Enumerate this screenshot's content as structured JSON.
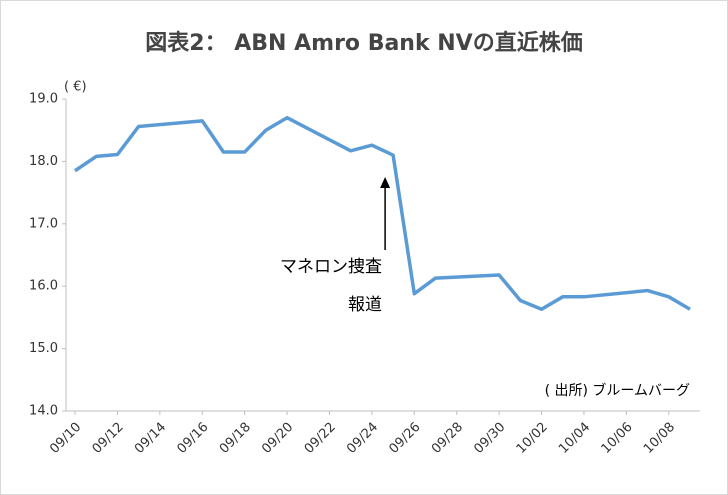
{
  "chart_data": {
    "type": "line",
    "title": "図表2： ABN Amro Bank NVの直近株価",
    "y_unit": "( €)",
    "annotation": [
      "マネロン捜査",
      "報道"
    ],
    "source": "( 出所) ブルームバーグ",
    "x": [
      "09/10",
      "09/11",
      "09/12",
      "09/13",
      "09/16",
      "09/17",
      "09/18",
      "09/19",
      "09/20",
      "09/23",
      "09/24",
      "09/25",
      "09/26",
      "09/27",
      "09/30",
      "10/01",
      "10/02",
      "10/03",
      "10/04",
      "10/07",
      "10/08",
      "10/09"
    ],
    "series": [
      {
        "name": "ABN Amro Bank NV",
        "color": "#5b9bd5",
        "values": [
          17.85,
          18.08,
          18.11,
          18.56,
          18.65,
          18.15,
          18.15,
          18.5,
          18.7,
          18.17,
          18.26,
          18.1,
          15.88,
          16.13,
          16.18,
          15.77,
          15.63,
          15.83,
          15.83,
          15.93,
          15.83,
          15.63
        ]
      }
    ],
    "xlim": [
      "09/10",
      "10/09"
    ],
    "xticks": [
      "09/10",
      "09/12",
      "09/14",
      "09/16",
      "09/18",
      "09/20",
      "09/22",
      "09/24",
      "09/26",
      "09/28",
      "09/30",
      "10/02",
      "10/04",
      "10/06",
      "10/08"
    ],
    "ylim": [
      14,
      19
    ],
    "yticks": [
      {
        "value": 14,
        "label": "14.0"
      },
      {
        "value": 15,
        "label": "15.0"
      },
      {
        "value": 16,
        "label": "16.0"
      },
      {
        "value": 17,
        "label": "17.0"
      },
      {
        "value": 18,
        "label": "18.0"
      },
      {
        "value": 19,
        "label": "19.0"
      }
    ],
    "annotation_x": "09/25",
    "grid": false
  }
}
